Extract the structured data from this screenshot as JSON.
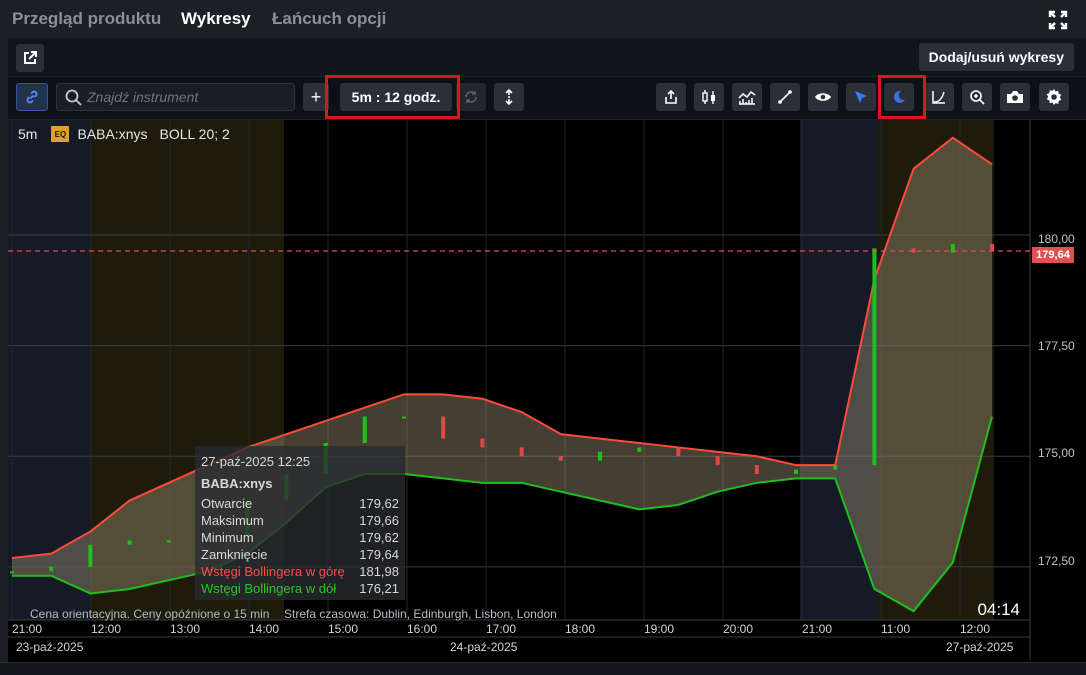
{
  "tabs": [
    {
      "label": "Przegląd produktu",
      "active": false
    },
    {
      "label": "Wykresy",
      "active": true
    },
    {
      "label": "Łańcuch opcji",
      "active": false
    }
  ],
  "toolbar": {
    "add_remove_label": "Dodaj/usuń wykresy",
    "search_placeholder": "Znajdź instrument",
    "add_label": "+",
    "interval_label": "5m : 12 godz."
  },
  "icons": [
    "expand-icon",
    "external-link-icon",
    "link-icon",
    "search-icon",
    "refresh-icon",
    "vertical-arrows-icon",
    "share-icon",
    "candles-icon",
    "indicators-icon",
    "trendline-icon",
    "eye-icon",
    "cursor-icon",
    "moon-icon",
    "curve-icon",
    "zoom-icon",
    "camera-icon",
    "gear-icon"
  ],
  "legend": {
    "interval": "5m",
    "badge": "EQ",
    "symbol": "BABA:xnys",
    "indicator": "BOLL 20; 2"
  },
  "tooltip": {
    "datetime": "27-paź-2025 12:25",
    "symbol": "BABA:xnys",
    "rows": [
      {
        "label": "Otwarcie",
        "value": "179,62",
        "color": "#d8d8d8"
      },
      {
        "label": "Maksimum",
        "value": "179,66",
        "color": "#d8d8d8"
      },
      {
        "label": "Minimum",
        "value": "179,62",
        "color": "#d8d8d8"
      },
      {
        "label": "Zamknięcie",
        "value": "179,64",
        "color": "#d8d8d8"
      },
      {
        "label": "Wstęgi Bollingera w górę",
        "value": "181,98",
        "color": "#ff4a4a"
      },
      {
        "label": "Wstęgi Bollingera w dół",
        "value": "176,21",
        "color": "#28c828"
      }
    ]
  },
  "footer": {
    "delay_note": "Cena orientacyjna. Ceny opóźnione o 15 min",
    "timezone_note": "Strefa czasowa: Dublin, Edinburgh, Lisbon, London",
    "clock": "04:14"
  },
  "last_price": "179,64",
  "colors": {
    "upper_band": "#ff4a3a",
    "lower_band": "#1fbf1f",
    "last_price": "#e05050",
    "accent": "#3b6fe0"
  },
  "chart_data": {
    "type": "candlestick",
    "y_ticks": [
      "180,00",
      "177,50",
      "175,00",
      "172,50"
    ],
    "ylim": [
      171.3,
      182.6
    ],
    "x_ticks": [
      "21:00",
      "12:00",
      "13:00",
      "14:00",
      "15:00",
      "16:00",
      "17:00",
      "18:00",
      "19:00",
      "20:00",
      "21:00",
      "11:00",
      "12:00"
    ],
    "date_labels": [
      "23-paź-2025",
      "24-paź-2025",
      "27-paź-2025"
    ],
    "last_price": 179.64,
    "upper_band": [
      172.7,
      172.8,
      173.3,
      174.0,
      174.4,
      174.8,
      175.2,
      175.5,
      175.8,
      176.1,
      176.4,
      176.4,
      176.3,
      176.0,
      175.5,
      175.4,
      175.3,
      175.2,
      175.1,
      175.0,
      174.8,
      174.8,
      179.0,
      181.5,
      182.2,
      181.6
    ],
    "lower_band": [
      172.3,
      172.3,
      171.9,
      172.0,
      172.2,
      172.4,
      172.8,
      173.5,
      174.3,
      174.6,
      174.6,
      174.5,
      174.4,
      174.4,
      174.2,
      174.0,
      173.8,
      173.9,
      174.2,
      174.4,
      174.5,
      174.5,
      172.0,
      171.5,
      172.6,
      175.9
    ],
    "close": [
      172.4,
      172.5,
      173.0,
      173.1,
      173.1,
      173.2,
      174.0,
      174.6,
      175.3,
      175.9,
      175.9,
      175.4,
      175.2,
      175.0,
      174.9,
      175.1,
      175.2,
      175.0,
      174.8,
      174.6,
      174.7,
      174.8,
      179.7,
      179.6,
      179.8,
      179.64
    ]
  }
}
